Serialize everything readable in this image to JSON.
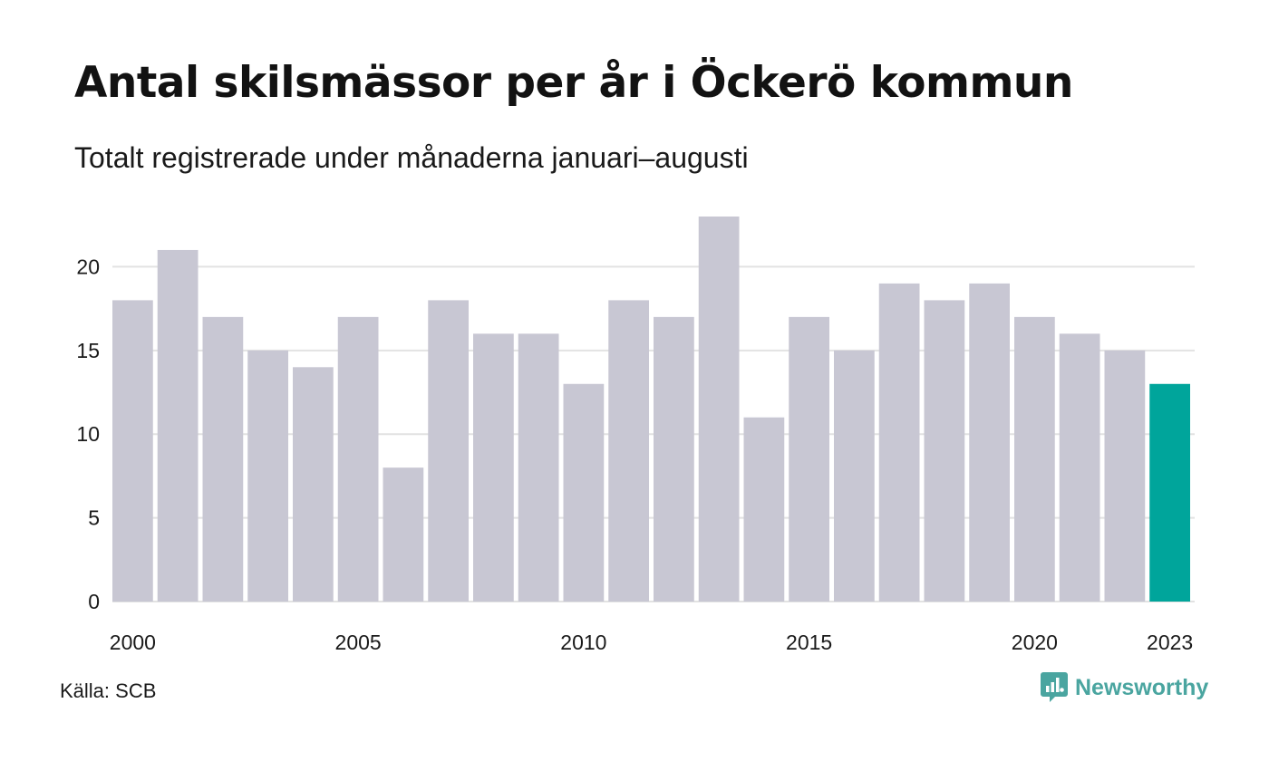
{
  "title": "Antal skilsmässor per år i Öckerö kommun",
  "subtitle": "Totalt registrerade under månaderna januari–augusti",
  "source": "Källa: SCB",
  "brand": {
    "name": "Newsworthy",
    "icon": "newsworthy-logo-icon",
    "color": "#4aa5a0"
  },
  "colors": {
    "bar": "#c8c7d3",
    "highlight": "#00a59b",
    "grid": "#e2e2e2"
  },
  "chart_data": {
    "type": "bar",
    "title": "Antal skilsmässor per år i Öckerö kommun",
    "subtitle": "Totalt registrerade under månaderna januari–augusti",
    "xlabel": "",
    "ylabel": "",
    "categories": [
      2000,
      2001,
      2002,
      2003,
      2004,
      2005,
      2006,
      2007,
      2008,
      2009,
      2010,
      2011,
      2012,
      2013,
      2014,
      2015,
      2016,
      2017,
      2018,
      2019,
      2020,
      2021,
      2022,
      2023
    ],
    "values": [
      18,
      21,
      17,
      15,
      14,
      17,
      8,
      18,
      16,
      16,
      13,
      18,
      17,
      23,
      11,
      17,
      15,
      19,
      18,
      19,
      17,
      16,
      15,
      13
    ],
    "highlight": 2023,
    "ylim": [
      0,
      23
    ],
    "yticks": [
      0,
      5,
      10,
      15,
      20
    ],
    "xticks": [
      2000,
      2005,
      2010,
      2015,
      2020,
      2023
    ],
    "grid": true,
    "legend": "none"
  }
}
